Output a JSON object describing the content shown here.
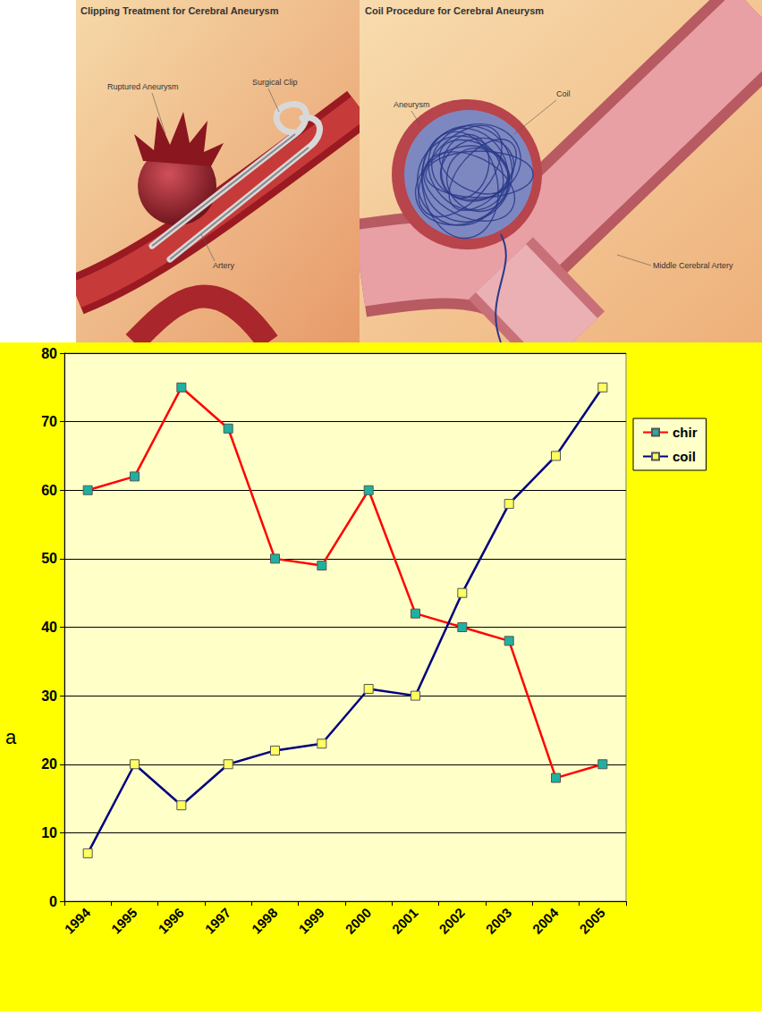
{
  "illustrations": [
    {
      "title": "Clipping Treatment for Cerebral Aneurysm",
      "labels": [
        "Ruptured Aneurysm",
        "Surgical Clip",
        "Artery"
      ]
    },
    {
      "title": "Coil Procedure for Cerebral Aneurysm",
      "labels": [
        "Aneurysm",
        "Coil",
        "Middle Cerebral Artery"
      ]
    }
  ],
  "chart_data": {
    "type": "line",
    "categories": [
      "1994",
      "1995",
      "1996",
      "1997",
      "1998",
      "1999",
      "2000",
      "2001",
      "2002",
      "2003",
      "2004",
      "2005"
    ],
    "series": [
      {
        "name": "chir",
        "color": "#ff0000",
        "marker": "square",
        "line_style": "solid",
        "values": [
          60,
          62,
          75,
          69,
          50,
          49,
          60,
          42,
          40,
          38,
          18,
          20
        ]
      },
      {
        "name": "coil",
        "color": "#000080",
        "marker": "square",
        "line_style": "solid",
        "values": [
          7,
          20,
          14,
          20,
          22,
          23,
          31,
          30,
          45,
          58,
          65,
          75
        ]
      }
    ],
    "ylim": [
      0,
      80
    ],
    "yticks": [
      0,
      10,
      20,
      30,
      40,
      50,
      60,
      70,
      80
    ],
    "grid": true,
    "legend": "right",
    "annotations": [
      "a"
    ]
  }
}
